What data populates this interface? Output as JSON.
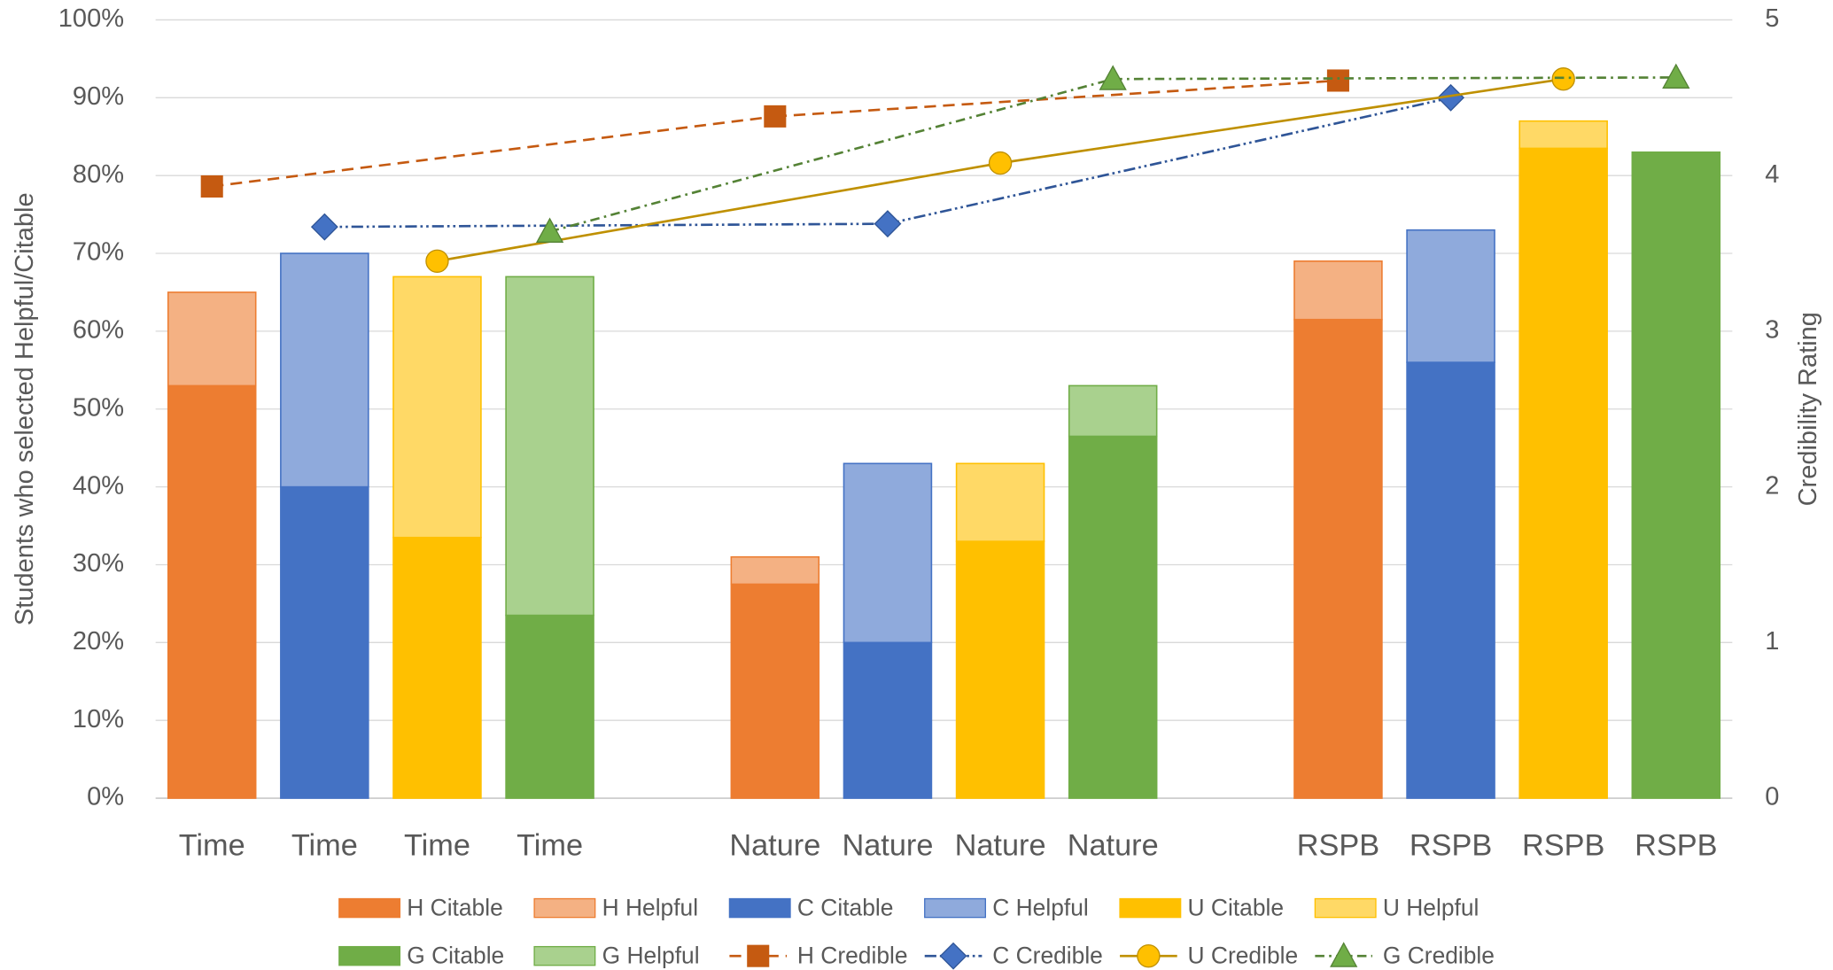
{
  "chart_data": {
    "type": "bar",
    "categories": [
      "Time",
      "Time",
      "Time",
      "Time",
      null,
      "Nature",
      "Nature",
      "Nature",
      "Nature",
      null,
      "RSPB",
      "RSPB",
      "RSPB",
      "RSPB"
    ],
    "y_label": "Students who selected Helpful/Citable",
    "y2_label": "Credibility Rating",
    "ylim": [
      0,
      100
    ],
    "yticks": [
      {
        "value": 0,
        "label": "0%"
      },
      {
        "value": 10,
        "label": "10%"
      },
      {
        "value": 20,
        "label": "20%"
      },
      {
        "value": 30,
        "label": "30%"
      },
      {
        "value": 40,
        "label": "40%"
      },
      {
        "value": 50,
        "label": "50%"
      },
      {
        "value": 60,
        "label": "60%"
      },
      {
        "value": 70,
        "label": "70%"
      },
      {
        "value": 80,
        "label": "80%"
      },
      {
        "value": 90,
        "label": "90%"
      },
      {
        "value": 100,
        "label": "100%"
      }
    ],
    "y2lim": [
      0,
      5
    ],
    "y2ticks": [
      0,
      1,
      2,
      3,
      4,
      5
    ],
    "grid": true,
    "legend": "bottom",
    "series": [
      {
        "name": "H Citable",
        "type": "bar",
        "color": "#ED7D31",
        "border": "#ED7D31",
        "values": [
          53,
          null,
          null,
          null,
          null,
          27.5,
          null,
          null,
          null,
          null,
          61.5,
          null,
          null,
          null
        ]
      },
      {
        "name": "H Helpful",
        "type": "bar",
        "color": "#F4B183",
        "border": "#ED7D31",
        "values": [
          12,
          null,
          null,
          null,
          null,
          3.5,
          null,
          null,
          null,
          null,
          7.5,
          null,
          null,
          null
        ]
      },
      {
        "name": "C Citable",
        "type": "bar",
        "color": "#4472C4",
        "border": "#4472C4",
        "values": [
          null,
          40,
          null,
          null,
          null,
          null,
          20,
          null,
          null,
          null,
          null,
          56,
          null,
          null
        ]
      },
      {
        "name": "C Helpful",
        "type": "bar",
        "color": "#8FAADC",
        "border": "#4472C4",
        "values": [
          null,
          30,
          null,
          null,
          null,
          null,
          23,
          null,
          null,
          null,
          null,
          17,
          null,
          null
        ]
      },
      {
        "name": "U Citable",
        "type": "bar",
        "color": "#FFC000",
        "border": "#FFC000",
        "values": [
          null,
          null,
          33.5,
          null,
          null,
          null,
          null,
          33,
          null,
          null,
          null,
          null,
          83.5,
          null
        ]
      },
      {
        "name": "U Helpful",
        "type": "bar",
        "color": "#FFD966",
        "border": "#FFC000",
        "values": [
          null,
          null,
          33.5,
          null,
          null,
          null,
          null,
          10,
          null,
          null,
          null,
          null,
          3.5,
          null
        ]
      },
      {
        "name": "G Citable",
        "type": "bar",
        "color": "#70AD47",
        "border": "#70AD47",
        "values": [
          null,
          null,
          null,
          23.5,
          null,
          null,
          null,
          null,
          46.5,
          null,
          null,
          null,
          null,
          83
        ]
      },
      {
        "name": "G Helpful",
        "type": "bar",
        "color": "#A9D18E",
        "border": "#70AD47",
        "values": [
          null,
          null,
          null,
          43.5,
          null,
          null,
          null,
          null,
          6.5,
          null,
          null,
          null,
          null,
          0
        ]
      },
      {
        "name": "H Credible",
        "type": "line",
        "axis": "y2",
        "color": "#C55A11",
        "marker_color": "#C55A11",
        "marker": "square",
        "dash": "10 6",
        "values": [
          3.93,
          null,
          null,
          null,
          null,
          4.38,
          null,
          null,
          null,
          null,
          4.61,
          null,
          null,
          null
        ]
      },
      {
        "name": "C Credible",
        "type": "line",
        "axis": "y2",
        "color": "#2F5597",
        "marker_color": "#4472C4",
        "marker": "diamond",
        "dash": "10 3 2 3 2 3",
        "values": [
          null,
          3.67,
          null,
          null,
          null,
          null,
          3.69,
          null,
          null,
          null,
          null,
          4.5,
          null,
          null
        ]
      },
      {
        "name": "U Credible",
        "type": "line",
        "axis": "y2",
        "color": "#BF9000",
        "marker_color": "#FFC000",
        "marker": "circle",
        "dash": "none",
        "values": [
          null,
          null,
          3.45,
          null,
          null,
          null,
          null,
          4.08,
          null,
          null,
          null,
          null,
          4.62,
          null
        ]
      },
      {
        "name": "G Credible",
        "type": "line",
        "axis": "y2",
        "color": "#548235",
        "marker_color": "#70AD47",
        "marker": "triangle",
        "dash": "8 4 2 4",
        "values": [
          null,
          null,
          null,
          3.64,
          null,
          null,
          null,
          null,
          4.62,
          null,
          null,
          null,
          null,
          4.63
        ]
      }
    ]
  }
}
